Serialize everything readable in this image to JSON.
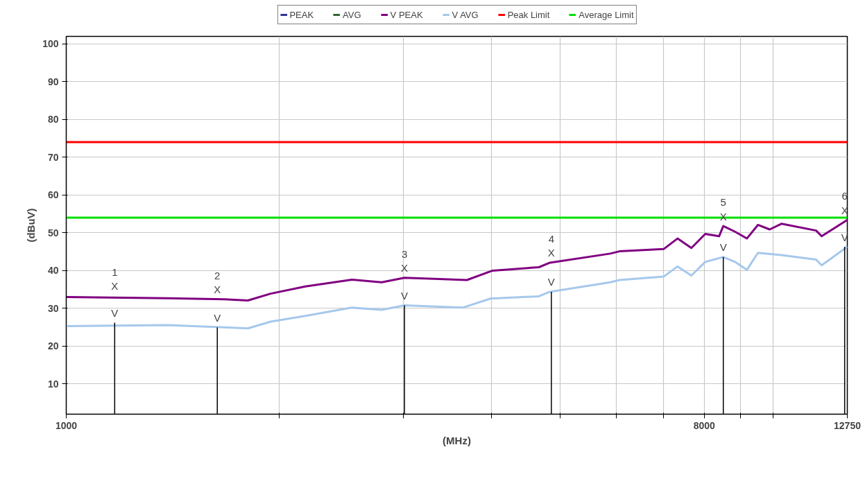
{
  "chart_data": {
    "type": "line",
    "xlabel": "(MHz)",
    "ylabel": "(dBuV)",
    "log": "x",
    "grid": true,
    "legend": "top",
    "marker": "none",
    "line_style": "solid",
    "xlim": [
      1000,
      12750
    ],
    "ylim": [
      2,
      102
    ],
    "xticks": [
      1000,
      {
        "value": 2000,
        "label": null
      },
      {
        "value": 3000,
        "label": null
      },
      {
        "value": 4000,
        "label": null
      },
      {
        "value": 5000,
        "label": null
      },
      {
        "value": 6000,
        "label": null
      },
      {
        "value": 7000,
        "label": null
      },
      8000,
      {
        "value": 9000,
        "label": null
      },
      {
        "value": 10000,
        "label": null
      },
      12750
    ],
    "yticks": [
      10,
      20,
      30,
      40,
      50,
      60,
      70,
      80,
      90,
      100
    ],
    "series": [
      {
        "name": "PEAK",
        "color": "#333399"
      },
      {
        "name": "AVG",
        "color": "#336633"
      },
      {
        "name": "V PEAK",
        "color": "#800080",
        "x": [
          1000,
          1388,
          1674,
          1807,
          1947,
          2180,
          2536,
          2795,
          3011,
          3371,
          3690,
          4012,
          4667,
          4838,
          5888,
          6065,
          7007,
          7332,
          7670,
          8025,
          8395,
          8511,
          8843,
          9190,
          9528,
          9900,
          10287,
          11518,
          11727,
          12750
        ],
        "values": [
          33.0,
          32.7,
          32.4,
          32.1,
          33.9,
          35.8,
          37.6,
          36.9,
          38.1,
          37.8,
          37.5,
          40.0,
          40.9,
          42.1,
          44.5,
          45.1,
          45.7,
          48.5,
          46.0,
          49.7,
          49.1,
          51.8,
          50.3,
          48.5,
          52.1,
          50.9,
          52.4,
          50.6,
          49.1,
          53.4
        ]
      },
      {
        "name": "V AVG",
        "color": "#a6c8ec",
        "x": [
          1000,
          1388,
          1674,
          1807,
          1947,
          2180,
          2536,
          2795,
          3011,
          3640,
          3985,
          4667,
          4838,
          5888,
          6065,
          7007,
          7332,
          7670,
          8025,
          8511,
          8843,
          9190,
          9528,
          10287,
          11518,
          11727,
          12750
        ],
        "values": [
          25.3,
          25.6,
          25.0,
          24.7,
          26.5,
          28.0,
          30.2,
          29.6,
          30.8,
          30.2,
          32.6,
          33.2,
          34.4,
          36.9,
          37.5,
          38.4,
          41.1,
          38.7,
          42.3,
          43.6,
          42.3,
          40.2,
          44.7,
          44.1,
          42.9,
          41.4,
          46.3
        ]
      },
      {
        "name": "Peak Limit",
        "color": "#ff0000",
        "x": [
          1000,
          12750
        ],
        "values": [
          74,
          74
        ]
      },
      {
        "name": "Average Limit",
        "color": "#00e000",
        "x": [
          1000,
          12750
        ],
        "values": [
          54,
          54
        ]
      }
    ],
    "annotations": [
      {
        "text": "1",
        "x": 1171,
        "y": 33.3
      },
      {
        "text": "X",
        "x": 1171,
        "y": 33.3
      },
      {
        "text": "V",
        "x": 1171,
        "y": 26.2
      },
      {
        "text": "2",
        "x": 1636,
        "y": 32.4
      },
      {
        "text": "X",
        "x": 1636,
        "y": 32.4
      },
      {
        "text": "V",
        "x": 1636,
        "y": 25.0
      },
      {
        "text": "3",
        "x": 3011,
        "y": 38.1
      },
      {
        "text": "X",
        "x": 3011,
        "y": 38.1
      },
      {
        "text": "V",
        "x": 3011,
        "y": 30.8
      },
      {
        "text": "4",
        "x": 4860,
        "y": 42.1
      },
      {
        "text": "X",
        "x": 4860,
        "y": 42.1
      },
      {
        "text": "V",
        "x": 4860,
        "y": 34.4
      },
      {
        "text": "5",
        "x": 8511,
        "y": 51.8
      },
      {
        "text": "X",
        "x": 8511,
        "y": 51.8
      },
      {
        "text": "V",
        "x": 8511,
        "y": 43.6
      },
      {
        "text": "6",
        "x": 12640,
        "y": 53.4
      },
      {
        "text": "X",
        "x": 12640,
        "y": 53.4
      },
      {
        "text": "V",
        "x": 12640,
        "y": 46.3
      }
    ]
  }
}
